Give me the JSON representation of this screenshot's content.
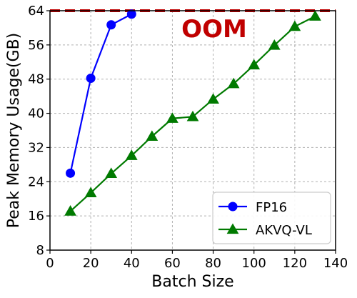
{
  "chart_data": {
    "type": "line",
    "xlabel": "Batch Size",
    "ylabel": "Peak Memory Usage(GB)",
    "xlim": [
      0,
      140
    ],
    "ylim": [
      8,
      64
    ],
    "x_ticks": [
      0,
      20,
      40,
      60,
      80,
      100,
      120,
      140
    ],
    "y_ticks": [
      8,
      16,
      24,
      32,
      40,
      48,
      56,
      64
    ],
    "grid": true,
    "legend_position": "bottom-right",
    "annotation": {
      "text": "OOM",
      "color": "#c00000",
      "line_y": 64
    },
    "series": [
      {
        "name": "FP16",
        "color": "#0000ff",
        "marker": "circle",
        "x": [
          10,
          20,
          30,
          40
        ],
        "y": [
          26,
          48.2,
          60.7,
          63.2
        ]
      },
      {
        "name": "AKVQ-VL",
        "color": "#007a00",
        "marker": "triangle",
        "x": [
          10,
          20,
          30,
          40,
          50,
          60,
          70,
          80,
          90,
          100,
          110,
          120,
          130
        ],
        "y": [
          17.1,
          21.4,
          25.9,
          30.1,
          34.6,
          38.8,
          39.2,
          43.3,
          46.9,
          51.3,
          55.9,
          60.3,
          62.7
        ]
      }
    ]
  }
}
